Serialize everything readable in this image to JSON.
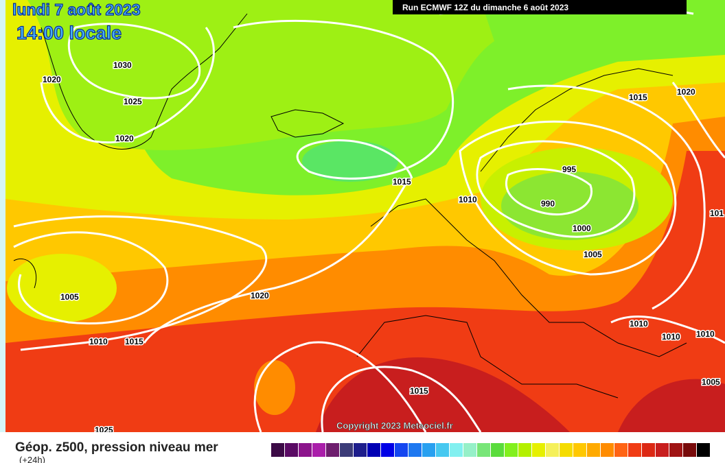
{
  "header": {
    "date": "lundi 7 août 2023",
    "time": "14:00 locale",
    "run": "Run ECMWF 12Z du dimanche 6 août 2023"
  },
  "map": {
    "isobar_labels": [
      "1030",
      "1020",
      "1025",
      "1020",
      "1015",
      "1010",
      "995",
      "990",
      "1000",
      "1005",
      "1015",
      "1020",
      "1020",
      "1005",
      "1010",
      "1015",
      "1010",
      "1010",
      "1010",
      "1005",
      "1015",
      "1025",
      "101"
    ],
    "copyright": "Copyright 2023 Meteociel.fr"
  },
  "footer": {
    "title": "Géop. z500, pression niveau mer",
    "subtitle": "(+24h)",
    "legend_colors": [
      "#3c0a46",
      "#5a0a64",
      "#8c148c",
      "#aa1eaa",
      "#6e1e6e",
      "#3c3c78",
      "#1e1e8c",
      "#0000b4",
      "#0000e6",
      "#1446f0",
      "#1e78f0",
      "#28a0f0",
      "#46c8f0",
      "#82f0f0",
      "#96f0c8",
      "#78e678",
      "#5adc3c",
      "#82f01e",
      "#b4f000",
      "#e6f000",
      "#f5f05a",
      "#f5dc00",
      "#ffc800",
      "#ffaa00",
      "#ff8c00",
      "#ff6414",
      "#f03c14",
      "#dc2814",
      "#c81e1e",
      "#a01414",
      "#780a0a",
      "#000000"
    ]
  }
}
